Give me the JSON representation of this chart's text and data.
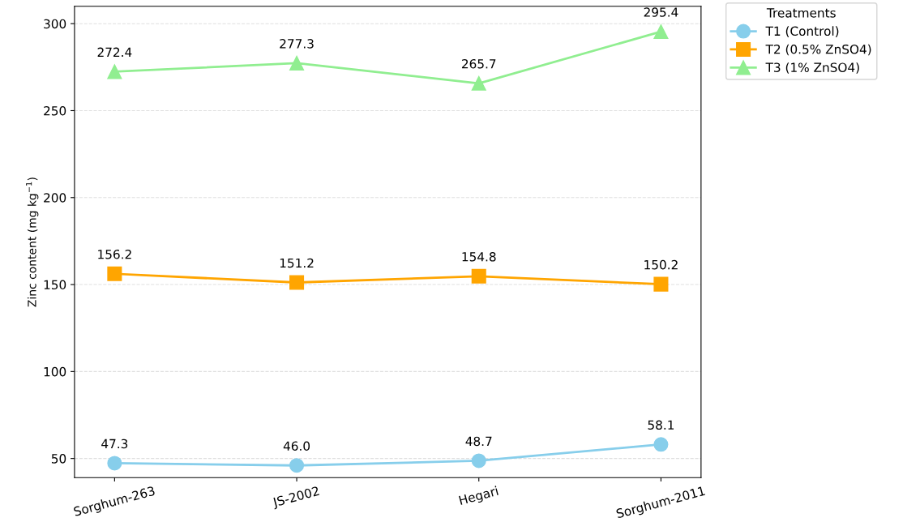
{
  "chart_data": {
    "type": "line",
    "ylabel": "Zinc content (mg kg$^{−1}$)",
    "legend_title": "Treatments",
    "categories": [
      "Sorghum-263",
      "JS-2002",
      "Hegari",
      "Sorghum-2011"
    ],
    "series": [
      {
        "name": "T1 (Control)",
        "color": "#87ceeb",
        "marker": "circle",
        "values": [
          47.3,
          46.0,
          48.7,
          58.1
        ],
        "value_labels": [
          "47.3",
          "46.0",
          "48.7",
          "58.1"
        ]
      },
      {
        "name": "T2 (0.5% ZnSO4)",
        "color": "#ffa500",
        "marker": "square",
        "values": [
          156.2,
          151.2,
          154.8,
          150.2
        ],
        "value_labels": [
          "156.2",
          "151.2",
          "154.8",
          "150.2"
        ]
      },
      {
        "name": "T3 (1% ZnSO4)",
        "color": "#90ee90",
        "marker": "triangle",
        "values": [
          272.4,
          277.3,
          265.7,
          295.4
        ],
        "value_labels": [
          "272.4",
          "277.3",
          "265.7",
          "295.4"
        ]
      }
    ],
    "ylim": [
      39,
      310
    ],
    "yticks": [
      50,
      100,
      150,
      200,
      250,
      300
    ],
    "grid": "y",
    "legend": "top right",
    "line_style": "solid"
  }
}
